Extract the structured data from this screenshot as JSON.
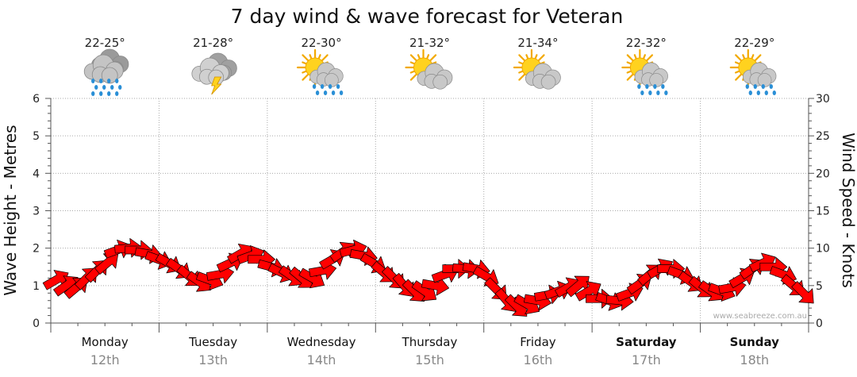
{
  "chart_data": {
    "type": "line",
    "title": "7 day wind & wave forecast for Veteran",
    "ylabel_left": "Wave Height - Metres",
    "ylabel_right": "Wind Speed - Knots",
    "ylim_left": [
      0,
      6
    ],
    "ylim_right": [
      0,
      30
    ],
    "yticks_left": [
      "0",
      "1",
      "2",
      "3",
      "4",
      "5",
      "6"
    ],
    "yticks_right": [
      "0",
      "5",
      "10",
      "15",
      "20",
      "25",
      "30"
    ],
    "grid": true,
    "days": [
      {
        "day": "Monday",
        "date": "12th",
        "temp": "22-25°",
        "icon": "rain-cloud-icon",
        "bold": false
      },
      {
        "day": "Tuesday",
        "date": "13th",
        "temp": "21-28°",
        "icon": "storm-cloud-icon",
        "bold": false
      },
      {
        "day": "Wednesday",
        "date": "14th",
        "temp": "22-30°",
        "icon": "sun-showers-icon",
        "bold": false
      },
      {
        "day": "Thursday",
        "date": "15th",
        "temp": "21-32°",
        "icon": "partly-cloudy-icon",
        "bold": false
      },
      {
        "day": "Friday",
        "date": "16th",
        "temp": "21-34°",
        "icon": "partly-cloudy-icon",
        "bold": false
      },
      {
        "day": "Saturday",
        "date": "17th",
        "temp": "22-32°",
        "icon": "sun-showers-icon",
        "bold": true
      },
      {
        "day": "Sunday",
        "date": "18th",
        "temp": "22-29°",
        "icon": "sun-showers-icon",
        "bold": true
      }
    ],
    "series": [
      {
        "values": [
          1.15,
          1.0,
          0.95,
          1.2,
          1.4,
          1.6,
          1.95,
          2.0,
          1.95,
          1.85,
          1.7,
          1.6,
          1.45,
          1.25,
          1.1,
          1.15,
          1.3,
          1.6,
          1.85,
          1.8,
          1.7,
          1.5,
          1.35,
          1.25,
          1.2,
          1.2,
          1.4,
          1.7,
          1.9,
          1.95,
          1.8,
          1.6,
          1.35,
          1.2,
          1.0,
          0.85,
          0.85,
          1.0,
          1.3,
          1.45,
          1.45,
          1.45,
          1.25,
          0.9,
          0.6,
          0.45,
          0.5,
          0.6,
          0.75,
          0.85,
          0.95,
          1.0,
          0.85,
          0.65,
          0.6,
          0.6,
          0.8,
          1.05,
          1.3,
          1.45,
          1.45,
          1.3,
          1.1,
          0.95,
          0.85,
          0.85,
          0.95,
          1.2,
          1.45,
          1.6,
          1.5,
          1.3,
          1.0,
          0.8
        ],
        "arrow_angles": [
          30,
          35,
          40,
          45,
          45,
          40,
          20,
          5,
          0,
          -10,
          -20,
          -30,
          -35,
          -40,
          -35,
          -20,
          10,
          25,
          30,
          20,
          0,
          -15,
          -25,
          -35,
          -40,
          -30,
          10,
          30,
          35,
          15,
          -10,
          -30,
          -40,
          -45,
          -50,
          -45,
          -35,
          -10,
          20,
          0,
          -5,
          -10,
          -30,
          -45,
          -50,
          -45,
          -30,
          -10,
          10,
          20,
          30,
          40,
          30,
          0,
          -20,
          -5,
          20,
          35,
          40,
          30,
          0,
          -20,
          -35,
          -40,
          -35,
          -20,
          10,
          30,
          35,
          25,
          0,
          -20,
          -40,
          -45
        ],
        "arrow_color": "#ff0000"
      }
    ],
    "watermark": "www.seabreeze.com.au"
  }
}
